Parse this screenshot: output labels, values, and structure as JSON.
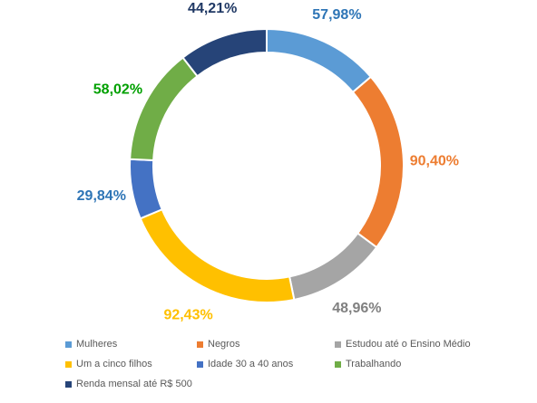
{
  "chart_data": {
    "type": "pie",
    "variant": "doughnut",
    "categories": [
      "Mulheres",
      "Negros",
      "Estudou até o Ensino Médio",
      "Um a cinco filhos",
      "Idade 30 a 40 anos",
      "Trabalhando",
      "Renda mensal até R$ 500"
    ],
    "values": [
      57.98,
      90.4,
      48.96,
      92.43,
      29.84,
      58.02,
      44.21
    ],
    "value_labels": [
      "57,98%",
      "90,40%",
      "48,96%",
      "92,43%",
      "29,84%",
      "58,02%",
      "44,21%"
    ],
    "colors": [
      "#5B9BD5",
      "#ED7D31",
      "#A5A5A5",
      "#FFC000",
      "#4472C4",
      "#70AD47",
      "#264478"
    ],
    "label_colors": [
      "#2E75B6",
      "#ED7D31",
      "#808080",
      "#FFC000",
      "#2E75B6",
      "#00A000",
      "#1F3864"
    ],
    "legend_position": "bottom",
    "title": ""
  }
}
